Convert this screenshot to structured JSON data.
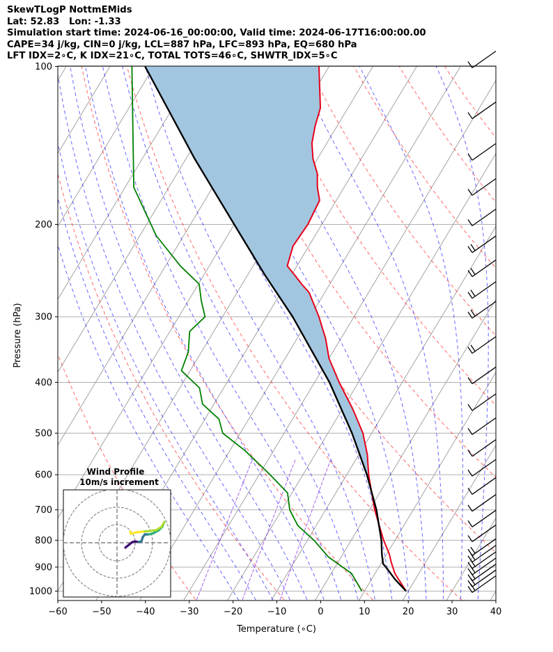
{
  "header": {
    "line1": "SkewTLogP NottmEMids",
    "line2": "Lat: 52.83   Lon: -1.33",
    "line3": "Simulation start time: 2024-06-16_00:00:00, Valid time: 2024-06-17T16:00:00.00",
    "line4": "CAPE=34 j/kg, CIN=0 j/kg, LCL=887 hPa, LFC=893 hPa, EQ=680 hPa",
    "line5": "LFT IDX=2∘C, K IDX=21∘C, TOTAL TOTS=46∘C, SHWTR_IDX=5∘C"
  },
  "chart_data": {
    "type": "skewt-logp",
    "xlabel": "Temperature (∘C)",
    "ylabel": "Pressure (hPa)",
    "xlim": [
      -60,
      40
    ],
    "ylim_hpa": [
      1050,
      100
    ],
    "x_ticks": [
      -60,
      -50,
      -40,
      -30,
      -20,
      -10,
      0,
      10,
      20,
      30,
      40
    ],
    "x_tick_labels": [
      "−60",
      "−50",
      "−40",
      "−30",
      "−20",
      "−10",
      "0",
      "10",
      "20",
      "30",
      "40"
    ],
    "y_ticks": [
      1000,
      900,
      800,
      700,
      600,
      500,
      400,
      300,
      200,
      100
    ],
    "y_tick_labels": [
      "1000",
      "900",
      "800",
      "700",
      "600",
      "500",
      "400",
      "300",
      "200",
      "100"
    ],
    "grid": true,
    "temperature": {
      "color": "#e8001a",
      "p": [
        1000,
        925,
        880,
        850,
        800,
        750,
        700,
        650,
        600,
        550,
        500,
        450,
        400,
        360,
        330,
        300,
        270,
        260,
        250,
        240,
        220,
        200,
        180,
        170,
        160,
        150,
        140,
        130,
        120,
        100
      ],
      "t": [
        19.5,
        14.5,
        12.1,
        10.6,
        7.4,
        4.4,
        1.2,
        -1.8,
        -5.0,
        -8.0,
        -12.0,
        -17.6,
        -24.4,
        -30.0,
        -33.5,
        -38.0,
        -43.5,
        -46.4,
        -49.2,
        -52.2,
        -53.6,
        -53.2,
        -53.8,
        -56.1,
        -58.0,
        -61.0,
        -63.4,
        -65.0,
        -66.3,
        -72.3
      ]
    },
    "dewpoint": {
      "color": "#008000",
      "p": [
        1000,
        925,
        900,
        860,
        800,
        750,
        700,
        650,
        600,
        540,
        500,
        470,
        440,
        410,
        380,
        350,
        320,
        300,
        280,
        260,
        240,
        210,
        170,
        100
      ],
      "t": [
        9.4,
        4.6,
        1.7,
        -3.0,
        -8.5,
        -14.2,
        -18.2,
        -21.0,
        -27.5,
        -36.5,
        -44.0,
        -46.8,
        -52.6,
        -55.5,
        -62.0,
        -63.0,
        -65.5,
        -64.0,
        -67.0,
        -69.8,
        -76.6,
        -86.3,
        -98.0,
        -115.0
      ]
    },
    "parcel": {
      "color": "#000000",
      "p": [
        1000,
        950,
        900,
        887,
        850,
        800,
        700,
        600,
        500,
        400,
        300,
        250,
        200,
        150,
        100
      ],
      "t": [
        19.5,
        15.4,
        11.6,
        10.5,
        8.9,
        6.9,
        1.6,
        -5.4,
        -14.5,
        -26.6,
        -44.0,
        -56.0,
        -70.0,
        -88.0,
        -112.0
      ]
    },
    "cape_region": {
      "label": "CAPE",
      "fill": "#a2c6e0",
      "p_bottom": 680,
      "p_top": 100
    },
    "wind_barbs": {
      "color": "#000000",
      "pressure_levels": [
        1000,
        975,
        950,
        925,
        900,
        875,
        850,
        800,
        750,
        700,
        650,
        600,
        550,
        500,
        450,
        400,
        350,
        300,
        275,
        250,
        225,
        200,
        175,
        150,
        125,
        100
      ]
    },
    "hodograph": {
      "title": "Wind Profile",
      "subtitle": "10m/s increment",
      "rings_ms": [
        10,
        20,
        30
      ],
      "colormap": [
        "#3b0f70",
        "#2c728e",
        "#28ae80",
        "#addc30",
        "#fde725"
      ]
    },
    "isotherm_color": "#999999",
    "dry_adiabat_color": "#ff0000",
    "moist_adiabat_color": "#0000ff",
    "mixing_ratio_color": "#8a2be2"
  }
}
